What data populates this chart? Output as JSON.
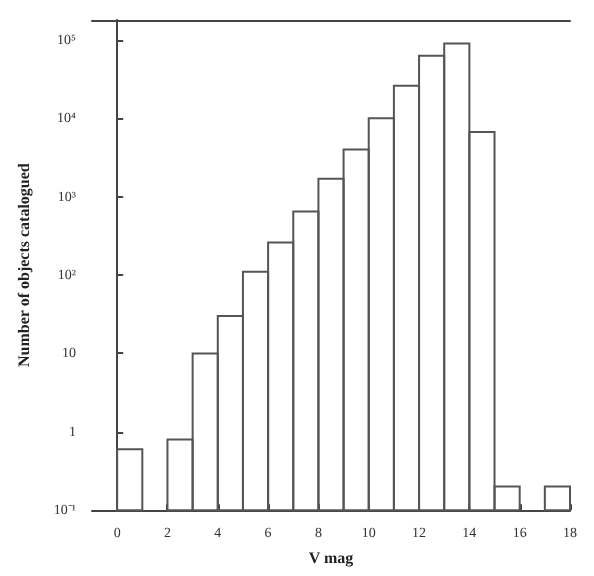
{
  "chart_data": {
    "type": "histogram",
    "xlabel": "V mag",
    "ylabel": "Number of objects catalogued",
    "bins": [
      0,
      1,
      2,
      3,
      4,
      5,
      6,
      7,
      8,
      9,
      10,
      11,
      12,
      13,
      14,
      15,
      16,
      17,
      18
    ],
    "values": [
      0.6,
      null,
      0.8,
      10,
      30,
      110,
      260,
      650,
      1700,
      4000,
      10000,
      26000,
      63000,
      90000,
      6700,
      0.2,
      null,
      0.2
    ],
    "color": "#555555",
    "log": "y",
    "xlim": [
      -1,
      18
    ],
    "xticks": [
      0,
      2,
      4,
      6,
      8,
      10,
      12,
      14,
      16,
      18
    ],
    "ylim": [
      0.1,
      180000
    ],
    "yticks": [
      {
        "value": 0.1,
        "label": "10⁻¹"
      },
      1,
      10,
      {
        "value": 100,
        "label": "10²"
      },
      {
        "value": 1000,
        "label": "10³"
      },
      {
        "value": 10000,
        "label": "10⁴"
      },
      {
        "value": 100000,
        "label": "10⁵"
      }
    ]
  }
}
